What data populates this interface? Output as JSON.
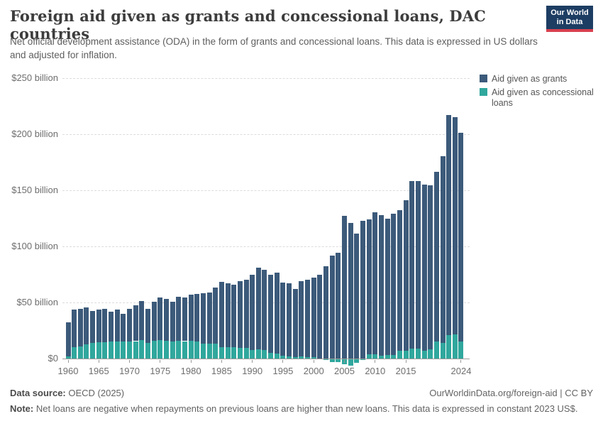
{
  "header": {
    "title": "Foreign aid given as grants and concessional loans, DAC countries",
    "subtitle": "Net official development assistance (ODA) in the form of grants and concessional loans. This data is expressed in US dollars and adjusted for inflation.",
    "logo": {
      "line1": "Our World",
      "line2": "in Data",
      "bg_color": "#1d3d63",
      "stripe_color": "#d8414f"
    }
  },
  "legend": [
    {
      "label": "Aid given as grants",
      "color": "#3C5A7A"
    },
    {
      "label": "Aid given as concessional loans",
      "color": "#30A79D"
    }
  ],
  "chart_data": {
    "type": "bar",
    "stacked": true,
    "title": "Foreign aid given as grants and concessional loans, DAC countries",
    "unit": "US$ billion (constant 2023 US$)",
    "x": [
      1960,
      1961,
      1962,
      1963,
      1964,
      1965,
      1966,
      1967,
      1968,
      1969,
      1970,
      1971,
      1972,
      1973,
      1974,
      1975,
      1976,
      1977,
      1978,
      1979,
      1980,
      1981,
      1982,
      1983,
      1984,
      1985,
      1986,
      1987,
      1988,
      1989,
      1990,
      1991,
      1992,
      1993,
      1994,
      1995,
      1996,
      1997,
      1998,
      1999,
      2000,
      2001,
      2002,
      2003,
      2004,
      2005,
      2006,
      2007,
      2008,
      2009,
      2010,
      2011,
      2012,
      2013,
      2014,
      2015,
      2016,
      2017,
      2018,
      2019,
      2020,
      2021,
      2022,
      2023,
      2024
    ],
    "series": [
      {
        "name": "Aid given as grants",
        "color": "#3C5A7A",
        "values": [
          30.5,
          33.5,
          33,
          33,
          28.5,
          29,
          29.5,
          26.5,
          28,
          25,
          29,
          32,
          35,
          30.5,
          34.5,
          38,
          37,
          35,
          39,
          39,
          41,
          42,
          45,
          46,
          50.5,
          58.5,
          57,
          56,
          59.5,
          61,
          67.5,
          73,
          71.5,
          70,
          72,
          65.5,
          65,
          60.5,
          67,
          68.5,
          71,
          75,
          82.5,
          92,
          94.5,
          127,
          121,
          111.5,
          122.5,
          120.5,
          126.5,
          125.5,
          121.5,
          126,
          125,
          134,
          149,
          149,
          148,
          146.5,
          151,
          166.5,
          196,
          193.5,
          186
        ]
      },
      {
        "name": "Aid given as concessional loans",
        "color": "#30A79D",
        "values": [
          2,
          10,
          11,
          12.5,
          14,
          14.5,
          14.5,
          15,
          15.5,
          15,
          15.5,
          15.5,
          16.5,
          14,
          16,
          16.5,
          16,
          15.5,
          16,
          15.5,
          16,
          15.5,
          13,
          13,
          13,
          10,
          10,
          10,
          9.5,
          9.5,
          7.5,
          8,
          7.5,
          5,
          4.5,
          2.5,
          2,
          1.5,
          2,
          1.5,
          1,
          -0.5,
          -1.5,
          -3,
          -3,
          -5,
          -6.5,
          -4,
          -1.5,
          3.5,
          4,
          2.5,
          3,
          3,
          7,
          7,
          9,
          9,
          7,
          8,
          15.5,
          14,
          21,
          21.5,
          15
        ]
      }
    ],
    "ylim": [
      -8,
      250
    ],
    "grid": "horizontal-dashed",
    "legend_position": "right",
    "yticks": [
      {
        "value": 0,
        "label": "$0"
      },
      {
        "value": 50,
        "label": "$50 billion"
      },
      {
        "value": 100,
        "label": "$100 billion"
      },
      {
        "value": 150,
        "label": "$150 billion"
      },
      {
        "value": 200,
        "label": "$200 billion"
      },
      {
        "value": 250,
        "label": "$250 billion"
      }
    ],
    "xticks": [
      {
        "value": 1960,
        "label": "1960"
      },
      {
        "value": 1965,
        "label": "1965"
      },
      {
        "value": 1970,
        "label": "1970"
      },
      {
        "value": 1975,
        "label": "1975"
      },
      {
        "value": 1980,
        "label": "1980"
      },
      {
        "value": 1985,
        "label": "1985"
      },
      {
        "value": 1990,
        "label": "1990"
      },
      {
        "value": 1995,
        "label": "1995"
      },
      {
        "value": 2000,
        "label": "2000"
      },
      {
        "value": 2005,
        "label": "2005"
      },
      {
        "value": 2010,
        "label": "2010"
      },
      {
        "value": 2015,
        "label": "2015"
      },
      {
        "value": 2024,
        "label": "2024"
      }
    ]
  },
  "footer": {
    "source_label": "Data source:",
    "source_value": " OECD (2025)",
    "link": "OurWorldinData.org/foreign-aid | CC BY",
    "note_label": "Note:",
    "note_value": " Net loans are negative when repayments on previous loans are higher than new loans. This data is expressed in constant 2023 US$."
  }
}
